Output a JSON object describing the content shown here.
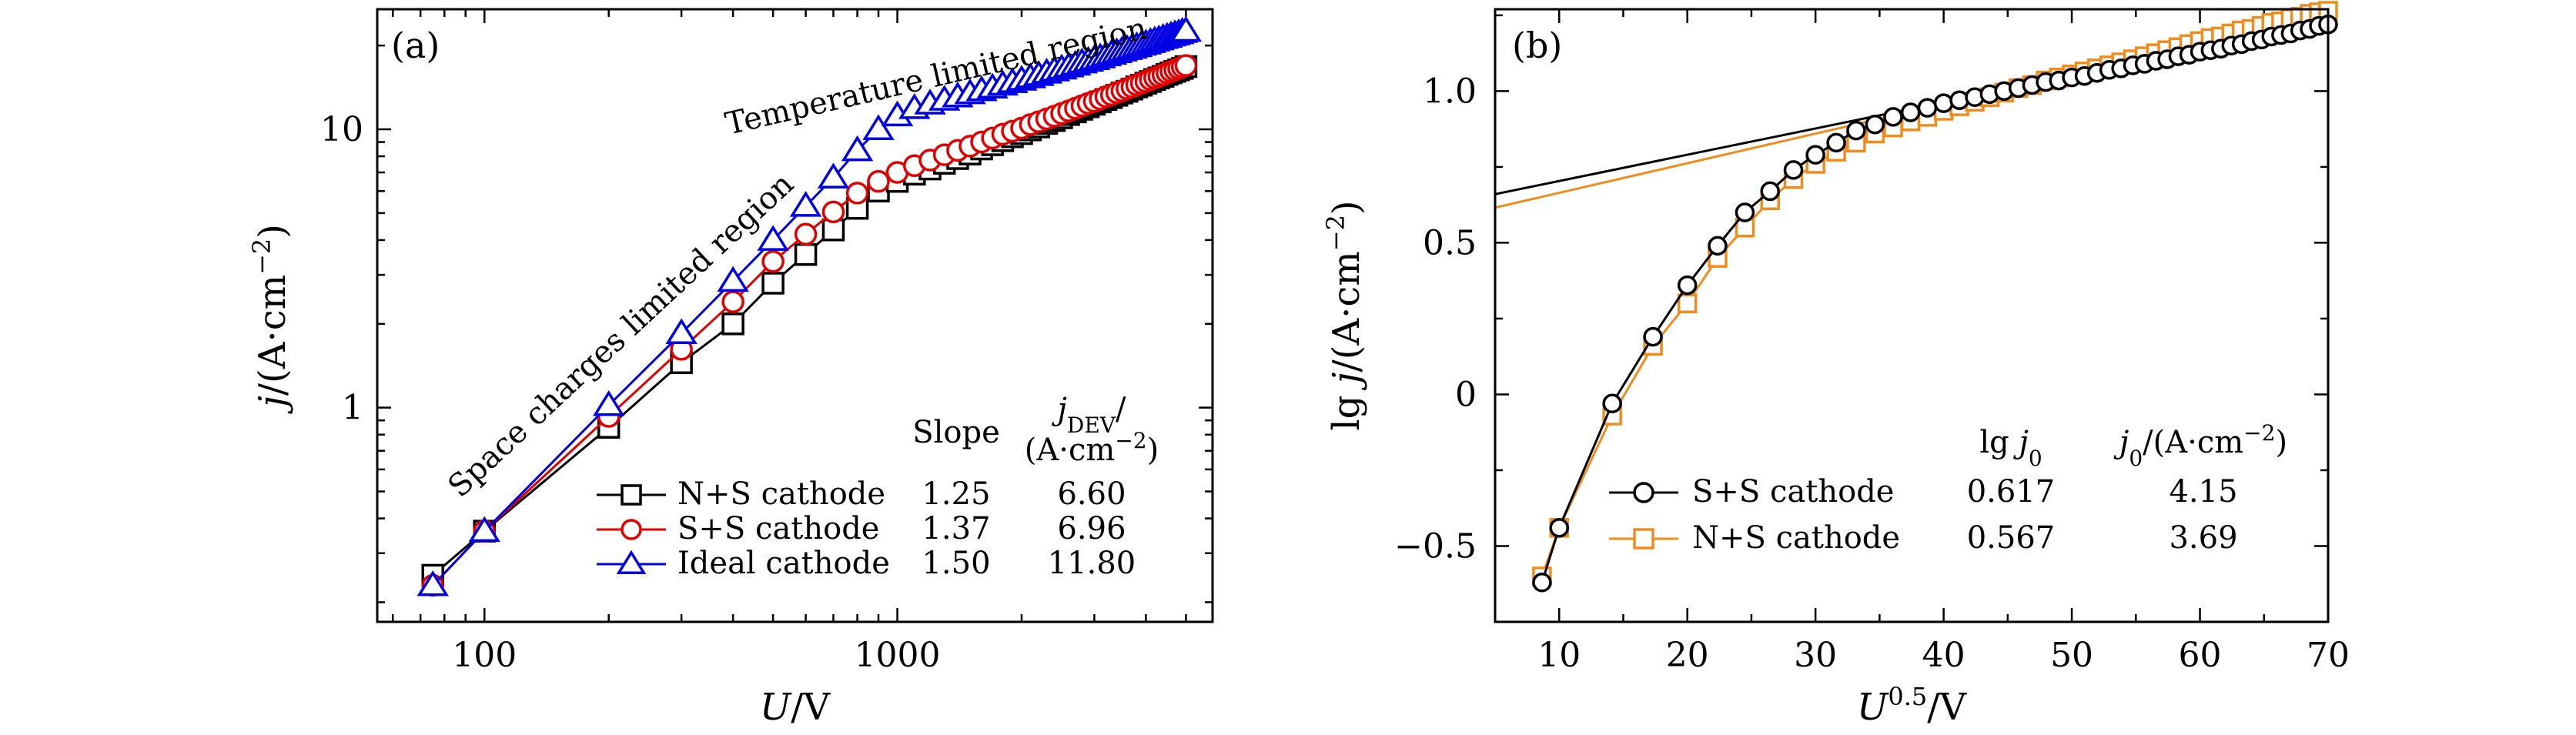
{
  "chart_data": [
    {
      "type": "line",
      "panel_label": "(a)",
      "xlabel": "U/V",
      "ylabel": "j/(A·cm⁻²)",
      "xscale": "log",
      "yscale": "log",
      "xlim": [
        55,
        5800
      ],
      "ylim": [
        0.17,
        27
      ],
      "x_ticks": [
        {
          "value": 100,
          "label": "100"
        },
        {
          "value": 1000,
          "label": "1000"
        }
      ],
      "y_ticks": [
        {
          "value": 1,
          "label": "1"
        },
        {
          "value": 10,
          "label": "10"
        }
      ],
      "annotations": [
        "Space charges limited region",
        "Temperature limited region"
      ],
      "legend": {
        "position": "lower-right",
        "headers": {
          "slope": "Slope",
          "jdev": "j",
          "jdev_sub": "DEV",
          "jdev_unit": "/",
          "jdev_unit2": "(A·cm⁻²)"
        }
      },
      "x": [
        75,
        100,
        200,
        300,
        400,
        500,
        600,
        700,
        800,
        900,
        1000,
        1100,
        1200,
        1300,
        1400,
        1500,
        1600,
        1700,
        1800,
        1900,
        2000,
        2100,
        2200,
        2300,
        2400,
        2500,
        2600,
        2700,
        2800,
        2900,
        3000,
        3100,
        3200,
        3300,
        3400,
        3500,
        3600,
        3700,
        3800,
        3900,
        4000,
        4100,
        4200,
        4300,
        4400,
        4500,
        4600,
        4700,
        4800,
        4900,
        5000
      ],
      "series": [
        {
          "name": "N+S cathode",
          "slope": "1.25",
          "jdev": "6.60",
          "color": "#000000",
          "marker": "square",
          "values": [
            0.25,
            0.36,
            0.85,
            1.45,
            2.0,
            2.8,
            3.55,
            4.35,
            5.2,
            6.0,
            6.5,
            6.9,
            7.2,
            7.55,
            7.85,
            8.15,
            8.5,
            8.8,
            9.1,
            9.4,
            9.65,
            9.95,
            10.2,
            10.5,
            10.75,
            11.0,
            11.3,
            11.55,
            11.8,
            12.05,
            12.3,
            12.55,
            12.8,
            13.0,
            13.25,
            13.5,
            13.7,
            13.95,
            14.2,
            14.4,
            14.65,
            14.85,
            15.1,
            15.3,
            15.5,
            15.75,
            15.95,
            16.15,
            16.35,
            16.55,
            16.8
          ]
        },
        {
          "name": "S+S cathode",
          "slope": "1.37",
          "jdev": "6.96",
          "color": "#e00000",
          "marker": "circle",
          "values": [
            0.23,
            0.36,
            0.93,
            1.62,
            2.4,
            3.35,
            4.2,
            5.05,
            5.9,
            6.5,
            7.0,
            7.4,
            7.75,
            8.1,
            8.4,
            8.7,
            9.0,
            9.3,
            9.6,
            9.85,
            10.1,
            10.4,
            10.65,
            10.9,
            11.15,
            11.4,
            11.65,
            11.9,
            12.15,
            12.4,
            12.6,
            12.85,
            13.1,
            13.3,
            13.55,
            13.75,
            14.0,
            14.2,
            14.45,
            14.65,
            14.85,
            15.1,
            15.3,
            15.5,
            15.7,
            15.95,
            16.15,
            16.35,
            16.55,
            16.75,
            16.95
          ]
        },
        {
          "name": "Ideal cathode",
          "slope": "1.50",
          "jdev": "11.80",
          "color": "#0000e6",
          "marker": "triangle",
          "values": [
            0.23,
            0.36,
            1.02,
            1.85,
            2.85,
            4.0,
            5.3,
            6.7,
            8.4,
            10.0,
            11.2,
            11.9,
            12.35,
            12.75,
            13.1,
            13.45,
            13.8,
            14.1,
            14.45,
            14.75,
            15.05,
            15.35,
            15.65,
            15.95,
            16.25,
            16.5,
            16.8,
            17.05,
            17.35,
            17.6,
            17.85,
            18.1,
            18.4,
            18.65,
            18.9,
            19.15,
            19.4,
            19.6,
            19.85,
            20.1,
            20.3,
            20.55,
            20.8,
            21.0,
            21.25,
            21.45,
            21.7,
            21.9,
            22.1,
            22.35,
            22.55
          ]
        }
      ]
    },
    {
      "type": "line",
      "panel_label": "(b)",
      "xlabel": "U^0.5/V",
      "ylabel": "lg j/(A·cm⁻²)",
      "xlim": [
        5,
        70
      ],
      "ylim": [
        -0.75,
        1.27
      ],
      "x_ticks": [
        {
          "value": 10,
          "label": "10"
        },
        {
          "value": 20,
          "label": "20"
        },
        {
          "value": 30,
          "label": "30"
        },
        {
          "value": 40,
          "label": "40"
        },
        {
          "value": 50,
          "label": "50"
        },
        {
          "value": 60,
          "label": "60"
        },
        {
          "value": 70,
          "label": "70"
        }
      ],
      "y_ticks": [
        {
          "value": -0.5,
          "label": "−0.5"
        },
        {
          "value": 0,
          "label": "0"
        },
        {
          "value": 0.5,
          "label": "0.5"
        },
        {
          "value": 1.0,
          "label": "1.0"
        }
      ],
      "legend": {
        "position": "lower-right",
        "headers": {
          "lgj0": "lg j",
          "lgj0_sub": "0",
          "j0": "j",
          "j0_sub": "0",
          "j0_unit": "/(A·cm⁻²)"
        }
      },
      "x": [
        8.66,
        10,
        14.14,
        17.32,
        20,
        22.36,
        24.49,
        26.46,
        28.28,
        30,
        31.62,
        33.17,
        34.64,
        36.06,
        37.42,
        38.73,
        40,
        41.23,
        42.43,
        43.59,
        44.72,
        45.83,
        46.9,
        47.96,
        48.99,
        50,
        50.99,
        51.96,
        52.92,
        53.85,
        54.77,
        55.68,
        56.57,
        57.45,
        58.31,
        59.16,
        60,
        60.83,
        61.64,
        62.45,
        63.25,
        64.03,
        64.81,
        65.57,
        66.33,
        67.08,
        67.82,
        68.56,
        69.28,
        70.0
      ],
      "series": [
        {
          "name": "S+S cathode",
          "lg_j0": "0.617",
          "j0": "4.15",
          "color": "#000000",
          "marker": "circle",
          "fit": {
            "intercept": 0.617,
            "slope": 0.00866
          },
          "values": [
            -0.62,
            -0.44,
            -0.03,
            0.19,
            0.36,
            0.49,
            0.6,
            0.67,
            0.74,
            0.79,
            0.83,
            0.87,
            0.89,
            0.915,
            0.93,
            0.945,
            0.96,
            0.97,
            0.98,
            0.99,
            1.0,
            1.01,
            1.02,
            1.03,
            1.035,
            1.045,
            1.05,
            1.06,
            1.07,
            1.075,
            1.085,
            1.09,
            1.1,
            1.105,
            1.115,
            1.12,
            1.13,
            1.135,
            1.14,
            1.15,
            1.155,
            1.165,
            1.17,
            1.18,
            1.185,
            1.19,
            1.2,
            1.205,
            1.215,
            1.22
          ]
        },
        {
          "name": "N+S cathode",
          "lg_j0": "0.567",
          "j0": "3.69",
          "color": "#f08c1e",
          "marker": "square",
          "fit": {
            "intercept": 0.567,
            "slope": 0.00976
          },
          "values": [
            -0.6,
            -0.44,
            -0.07,
            0.16,
            0.3,
            0.45,
            0.55,
            0.64,
            0.71,
            0.76,
            0.8,
            0.83,
            0.86,
            0.88,
            0.9,
            0.915,
            0.935,
            0.95,
            0.965,
            0.98,
            0.995,
            1.01,
            1.02,
            1.035,
            1.045,
            1.055,
            1.065,
            1.075,
            1.085,
            1.095,
            1.105,
            1.115,
            1.125,
            1.135,
            1.145,
            1.155,
            1.165,
            1.175,
            1.18,
            1.19,
            1.2,
            1.205,
            1.215,
            1.225,
            1.23,
            1.24,
            1.245,
            1.255,
            1.26,
            1.265
          ]
        }
      ]
    }
  ]
}
